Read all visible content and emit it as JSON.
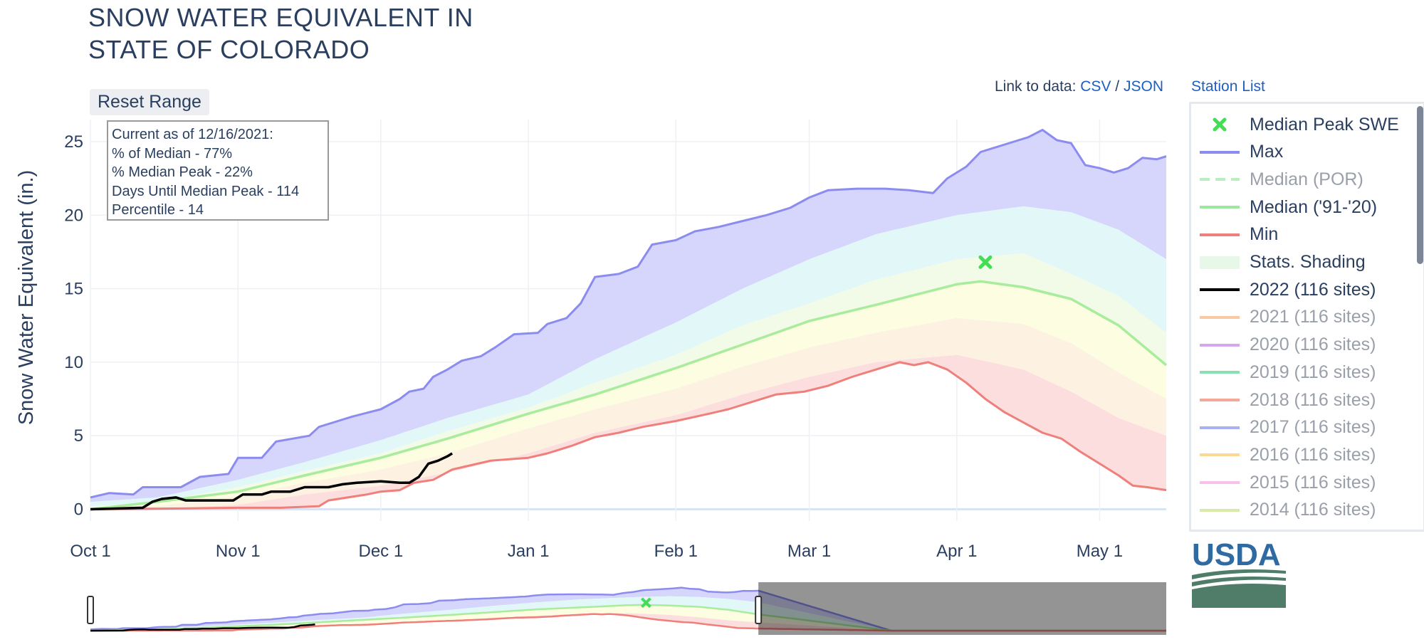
{
  "title": {
    "line1": "SNOW WATER EQUIVALENT IN",
    "line2": "STATE OF COLORADO"
  },
  "controls": {
    "reset_label": "Reset Range",
    "link_prefix": "Link to data:",
    "csv_label": "CSV",
    "slash": "/",
    "json_label": "JSON",
    "station_list_label": "Station List"
  },
  "info_box": {
    "line1": "Current as of 12/16/2021:",
    "line2": "% of Median - 77%",
    "line3": "% Median Peak - 22%",
    "line4": "Days Until Median Peak - 114",
    "line5": "Percentile - 14"
  },
  "logo": {
    "text": "USDA"
  },
  "legend": {
    "items": [
      {
        "label": "Median Peak SWE",
        "style": "x-marker",
        "color": "#44dd55",
        "muted": false
      },
      {
        "label": "Max",
        "style": "line",
        "color": "#8c8cf0",
        "muted": false
      },
      {
        "label": "Median (POR)",
        "style": "dash",
        "color": "#b9efc0",
        "muted": true
      },
      {
        "label": "Median ('91-'20)",
        "style": "line",
        "color": "#9ce89c",
        "muted": false
      },
      {
        "label": "Min",
        "style": "line",
        "color": "#ef7f7a",
        "muted": false
      },
      {
        "label": "Stats. Shading",
        "style": "fill",
        "color": "#e8f8e8",
        "muted": false
      },
      {
        "label": "2022 (116 sites)",
        "style": "line",
        "color": "#000000",
        "muted": false
      },
      {
        "label": "2021 (116 sites)",
        "style": "line",
        "color": "#fcc8a0",
        "muted": true
      },
      {
        "label": "2020 (116 sites)",
        "style": "line",
        "color": "#d3a8f0",
        "muted": true
      },
      {
        "label": "2019 (116 sites)",
        "style": "line",
        "color": "#86e0b0",
        "muted": true
      },
      {
        "label": "2018 (116 sites)",
        "style": "line",
        "color": "#f4a898",
        "muted": true
      },
      {
        "label": "2017 (116 sites)",
        "style": "line",
        "color": "#aab0f4",
        "muted": true
      },
      {
        "label": "2016 (116 sites)",
        "style": "line",
        "color": "#fcd890",
        "muted": true
      },
      {
        "label": "2015 (116 sites)",
        "style": "line",
        "color": "#f8c0ec",
        "muted": true
      },
      {
        "label": "2014 (116 sites)",
        "style": "line",
        "color": "#d8eaa8",
        "muted": true
      }
    ]
  },
  "chart_data": {
    "type": "area",
    "title": "SNOW WATER EQUIVALENT IN STATE OF COLORADO",
    "ylabel": "Snow Water Equivalent (in.)",
    "xlabel": "",
    "ylim": [
      -0.8,
      26.5
    ],
    "xlim": [
      "2021-10-01",
      "2022-05-15"
    ],
    "grid": true,
    "legend_position": "right",
    "y_ticks": [
      0,
      5,
      10,
      15,
      20,
      25
    ],
    "x_ticks": [
      {
        "date": "2021-10-01",
        "label": "Oct  1"
      },
      {
        "date": "2021-11-01",
        "label": "Nov  1"
      },
      {
        "date": "2021-12-01",
        "label": "Dec  1"
      },
      {
        "date": "2022-01-01",
        "label": "Jan  1"
      },
      {
        "date": "2022-02-01",
        "label": "Feb  1"
      },
      {
        "date": "2022-03-01",
        "label": "Mar  1"
      },
      {
        "date": "2022-04-01",
        "label": "Apr  1"
      },
      {
        "date": "2022-05-01",
        "label": "May  1"
      }
    ],
    "colors": {
      "max": "#8c8cf0",
      "max_fill": "#d6d6fc",
      "p90_fill": "#e2f8f8",
      "p70_fill": "#f2fbe8",
      "p50_fill": "#fdfde2",
      "p30_fill": "#fdf2e2",
      "min_fill": "#fddede",
      "median": "#a8ec9c",
      "min": "#ef7f7a",
      "current": "#000000",
      "peak_marker": "#44dd55"
    },
    "series": [
      {
        "name": "Max",
        "points": [
          [
            "2021-10-01",
            0.8
          ],
          [
            "2021-10-05",
            1.1
          ],
          [
            "2021-10-10",
            1.0
          ],
          [
            "2021-10-12",
            1.5
          ],
          [
            "2021-10-20",
            1.5
          ],
          [
            "2021-10-24",
            2.2
          ],
          [
            "2021-10-30",
            2.4
          ],
          [
            "2021-11-01",
            3.5
          ],
          [
            "2021-11-06",
            3.5
          ],
          [
            "2021-11-09",
            4.6
          ],
          [
            "2021-11-16",
            5.0
          ],
          [
            "2021-11-18",
            5.6
          ],
          [
            "2021-11-22",
            6.0
          ],
          [
            "2021-11-25",
            6.3
          ],
          [
            "2021-12-01",
            6.8
          ],
          [
            "2021-12-05",
            7.5
          ],
          [
            "2021-12-07",
            8.0
          ],
          [
            "2021-12-10",
            8.2
          ],
          [
            "2021-12-12",
            9.0
          ],
          [
            "2021-12-15",
            9.5
          ],
          [
            "2021-12-18",
            10.1
          ],
          [
            "2021-12-22",
            10.4
          ],
          [
            "2021-12-25",
            11.0
          ],
          [
            "2021-12-29",
            11.9
          ],
          [
            "2022-01-03",
            12.0
          ],
          [
            "2022-01-05",
            12.6
          ],
          [
            "2022-01-09",
            13.0
          ],
          [
            "2022-01-12",
            14.0
          ],
          [
            "2022-01-15",
            15.8
          ],
          [
            "2022-01-20",
            16.0
          ],
          [
            "2022-01-24",
            16.5
          ],
          [
            "2022-01-27",
            18.0
          ],
          [
            "2022-02-01",
            18.3
          ],
          [
            "2022-02-05",
            18.9
          ],
          [
            "2022-02-10",
            19.2
          ],
          [
            "2022-02-15",
            19.6
          ],
          [
            "2022-02-20",
            20.0
          ],
          [
            "2022-02-25",
            20.5
          ],
          [
            "2022-03-01",
            21.2
          ],
          [
            "2022-03-05",
            21.7
          ],
          [
            "2022-03-11",
            21.8
          ],
          [
            "2022-03-17",
            21.8
          ],
          [
            "2022-03-22",
            21.7
          ],
          [
            "2022-03-27",
            21.5
          ],
          [
            "2022-03-30",
            22.5
          ],
          [
            "2022-04-03",
            23.3
          ],
          [
            "2022-04-06",
            24.3
          ],
          [
            "2022-04-09",
            24.6
          ],
          [
            "2022-04-13",
            25.0
          ],
          [
            "2022-04-16",
            25.3
          ],
          [
            "2022-04-19",
            25.8
          ],
          [
            "2022-04-22",
            25.1
          ],
          [
            "2022-04-25",
            24.9
          ],
          [
            "2022-04-28",
            23.4
          ],
          [
            "2022-05-01",
            23.2
          ],
          [
            "2022-05-04",
            22.9
          ],
          [
            "2022-05-07",
            23.2
          ],
          [
            "2022-05-10",
            23.9
          ],
          [
            "2022-05-13",
            23.8
          ],
          [
            "2022-05-15",
            24.0
          ]
        ]
      },
      {
        "name": "P90",
        "points": [
          [
            "2021-10-01",
            0.5
          ],
          [
            "2021-10-15",
            0.8
          ],
          [
            "2021-11-01",
            2.0
          ],
          [
            "2021-11-15",
            3.2
          ],
          [
            "2021-12-01",
            4.7
          ],
          [
            "2021-12-15",
            6.2
          ],
          [
            "2022-01-01",
            7.8
          ],
          [
            "2022-01-15",
            10.2
          ],
          [
            "2022-02-01",
            12.7
          ],
          [
            "2022-02-15",
            15.0
          ],
          [
            "2022-03-01",
            17.0
          ],
          [
            "2022-03-15",
            18.7
          ],
          [
            "2022-04-01",
            20.0
          ],
          [
            "2022-04-15",
            20.6
          ],
          [
            "2022-04-25",
            20.2
          ],
          [
            "2022-05-05",
            19.0
          ],
          [
            "2022-05-15",
            17.0
          ]
        ]
      },
      {
        "name": "P70",
        "points": [
          [
            "2021-10-01",
            0.2
          ],
          [
            "2021-10-15",
            0.5
          ],
          [
            "2021-11-01",
            1.5
          ],
          [
            "2021-11-15",
            2.6
          ],
          [
            "2021-12-01",
            3.8
          ],
          [
            "2021-12-15",
            5.3
          ],
          [
            "2022-01-01",
            6.9
          ],
          [
            "2022-01-15",
            8.6
          ],
          [
            "2022-02-01",
            10.5
          ],
          [
            "2022-02-15",
            12.5
          ],
          [
            "2022-03-01",
            14.0
          ],
          [
            "2022-03-15",
            15.6
          ],
          [
            "2022-04-01",
            17.0
          ],
          [
            "2022-04-15",
            17.4
          ],
          [
            "2022-04-25",
            16.0
          ],
          [
            "2022-05-05",
            14.5
          ],
          [
            "2022-05-15",
            12.0
          ]
        ]
      },
      {
        "name": "Median ('91-'20)",
        "points": [
          [
            "2021-10-01",
            0.0
          ],
          [
            "2021-10-15",
            0.5
          ],
          [
            "2021-11-01",
            1.2
          ],
          [
            "2021-11-15",
            2.3
          ],
          [
            "2021-12-01",
            3.5
          ],
          [
            "2021-12-15",
            4.8
          ],
          [
            "2022-01-01",
            6.5
          ],
          [
            "2022-01-15",
            7.8
          ],
          [
            "2022-02-01",
            9.6
          ],
          [
            "2022-02-15",
            11.2
          ],
          [
            "2022-03-01",
            12.8
          ],
          [
            "2022-03-15",
            13.9
          ],
          [
            "2022-04-01",
            15.3
          ],
          [
            "2022-04-06",
            15.5
          ],
          [
            "2022-04-15",
            15.1
          ],
          [
            "2022-04-25",
            14.3
          ],
          [
            "2022-05-05",
            12.5
          ],
          [
            "2022-05-15",
            9.8
          ]
        ]
      },
      {
        "name": "P30",
        "points": [
          [
            "2021-10-01",
            0.0
          ],
          [
            "2021-10-15",
            0.2
          ],
          [
            "2021-11-01",
            0.9
          ],
          [
            "2021-11-15",
            1.8
          ],
          [
            "2021-12-01",
            2.7
          ],
          [
            "2021-12-15",
            3.8
          ],
          [
            "2022-01-01",
            5.5
          ],
          [
            "2022-01-15",
            6.8
          ],
          [
            "2022-02-01",
            8.2
          ],
          [
            "2022-02-15",
            9.7
          ],
          [
            "2022-03-01",
            11.0
          ],
          [
            "2022-03-15",
            12.0
          ],
          [
            "2022-04-01",
            13.0
          ],
          [
            "2022-04-15",
            12.6
          ],
          [
            "2022-04-25",
            11.3
          ],
          [
            "2022-05-05",
            9.3
          ],
          [
            "2022-05-15",
            7.5
          ]
        ]
      },
      {
        "name": "P10",
        "points": [
          [
            "2021-10-01",
            0.0
          ],
          [
            "2021-10-15",
            0.0
          ],
          [
            "2021-11-01",
            0.3
          ],
          [
            "2021-11-15",
            1.0
          ],
          [
            "2021-12-01",
            1.6
          ],
          [
            "2021-12-15",
            2.5
          ],
          [
            "2022-01-01",
            3.8
          ],
          [
            "2022-01-15",
            5.2
          ],
          [
            "2022-02-01",
            6.4
          ],
          [
            "2022-02-15",
            7.8
          ],
          [
            "2022-03-01",
            9.0
          ],
          [
            "2022-03-15",
            10.0
          ],
          [
            "2022-04-01",
            10.5
          ],
          [
            "2022-04-15",
            9.5
          ],
          [
            "2022-04-25",
            8.0
          ],
          [
            "2022-05-05",
            6.2
          ],
          [
            "2022-05-15",
            5.0
          ]
        ]
      },
      {
        "name": "Min",
        "points": [
          [
            "2021-10-01",
            0.0
          ],
          [
            "2021-10-20",
            0.05
          ],
          [
            "2021-11-01",
            0.1
          ],
          [
            "2021-11-10",
            0.1
          ],
          [
            "2021-11-18",
            0.2
          ],
          [
            "2021-11-20",
            0.6
          ],
          [
            "2021-11-28",
            1.0
          ],
          [
            "2021-12-01",
            1.2
          ],
          [
            "2021-12-05",
            1.3
          ],
          [
            "2021-12-08",
            1.8
          ],
          [
            "2021-12-12",
            2.0
          ],
          [
            "2021-12-16",
            2.7
          ],
          [
            "2021-12-20",
            3.0
          ],
          [
            "2021-12-24",
            3.3
          ],
          [
            "2022-01-01",
            3.5
          ],
          [
            "2022-01-05",
            3.8
          ],
          [
            "2022-01-10",
            4.3
          ],
          [
            "2022-01-15",
            4.9
          ],
          [
            "2022-01-20",
            5.2
          ],
          [
            "2022-01-25",
            5.6
          ],
          [
            "2022-02-01",
            6.0
          ],
          [
            "2022-02-08",
            6.5
          ],
          [
            "2022-02-12",
            6.8
          ],
          [
            "2022-02-18",
            7.4
          ],
          [
            "2022-02-22",
            7.8
          ],
          [
            "2022-02-28",
            8.0
          ],
          [
            "2022-03-05",
            8.4
          ],
          [
            "2022-03-10",
            9.0
          ],
          [
            "2022-03-15",
            9.5
          ],
          [
            "2022-03-20",
            10.0
          ],
          [
            "2022-03-23",
            9.8
          ],
          [
            "2022-03-26",
            10.0
          ],
          [
            "2022-03-30",
            9.5
          ],
          [
            "2022-04-03",
            8.6
          ],
          [
            "2022-04-07",
            7.5
          ],
          [
            "2022-04-11",
            6.6
          ],
          [
            "2022-04-15",
            5.9
          ],
          [
            "2022-04-19",
            5.2
          ],
          [
            "2022-04-23",
            4.8
          ],
          [
            "2022-04-27",
            3.9
          ],
          [
            "2022-05-01",
            3.1
          ],
          [
            "2022-05-05",
            2.3
          ],
          [
            "2022-05-08",
            1.6
          ],
          [
            "2022-05-11",
            1.5
          ],
          [
            "2022-05-15",
            1.3
          ]
        ]
      },
      {
        "name": "2022 (116 sites)",
        "points": [
          [
            "2021-10-01",
            0.0
          ],
          [
            "2021-10-12",
            0.1
          ],
          [
            "2021-10-14",
            0.5
          ],
          [
            "2021-10-16",
            0.7
          ],
          [
            "2021-10-19",
            0.8
          ],
          [
            "2021-10-21",
            0.6
          ],
          [
            "2021-10-31",
            0.6
          ],
          [
            "2021-11-02",
            1.0
          ],
          [
            "2021-11-06",
            1.0
          ],
          [
            "2021-11-08",
            1.2
          ],
          [
            "2021-11-12",
            1.2
          ],
          [
            "2021-11-15",
            1.5
          ],
          [
            "2021-11-20",
            1.5
          ],
          [
            "2021-11-23",
            1.7
          ],
          [
            "2021-11-26",
            1.8
          ],
          [
            "2021-12-01",
            1.9
          ],
          [
            "2021-12-05",
            1.8
          ],
          [
            "2021-12-07",
            1.8
          ],
          [
            "2021-12-09",
            2.2
          ],
          [
            "2021-12-11",
            3.1
          ],
          [
            "2021-12-13",
            3.3
          ],
          [
            "2021-12-15",
            3.6
          ],
          [
            "2021-12-16",
            3.8
          ]
        ]
      }
    ],
    "median_peak_swe": {
      "date": "2022-04-07",
      "value": 16.8
    },
    "range_slider": {
      "xlim": [
        "2021-10-01",
        "2022-09-30"
      ],
      "selected_range": [
        "2021-10-01",
        "2022-05-15"
      ]
    }
  }
}
